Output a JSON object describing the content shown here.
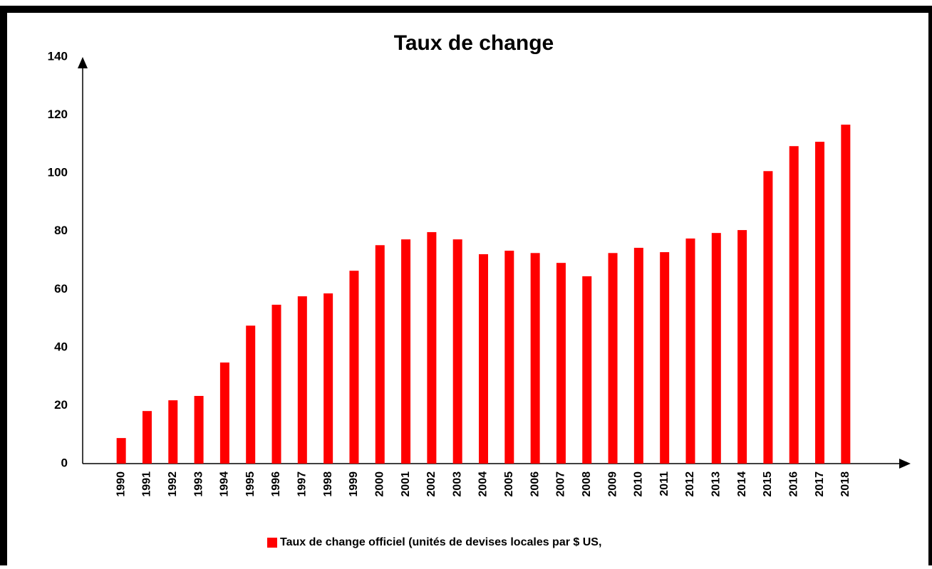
{
  "chart_data": {
    "type": "bar",
    "title": "Taux de change",
    "categories": [
      "1990",
      "1991",
      "1992",
      "1993",
      "1994",
      "1995",
      "1996",
      "1997",
      "1998",
      "1999",
      "2000",
      "2001",
      "2002",
      "2003",
      "2004",
      "2005",
      "2006",
      "2007",
      "2008",
      "2009",
      "2010",
      "2011",
      "2012",
      "2013",
      "2014",
      "2015",
      "2016",
      "2017",
      "2018"
    ],
    "series": [
      {
        "name": "Taux de change officiel (unités de devises locales par $ US,",
        "color": "#ff0000",
        "values": [
          8.8,
          18.1,
          21.8,
          23.3,
          34.8,
          47.5,
          54.7,
          57.6,
          58.6,
          66.4,
          75.2,
          77.2,
          79.7,
          77.2,
          72.1,
          73.3,
          72.5,
          69.1,
          64.5,
          72.5,
          74.3,
          72.8,
          77.5,
          79.4,
          80.4,
          100.7,
          109.3,
          110.8,
          116.7
        ]
      }
    ],
    "ylim": [
      0,
      140
    ],
    "yticks": [
      0,
      20,
      40,
      60,
      80,
      100,
      120,
      140
    ],
    "grid": false,
    "legend": "bottom"
  }
}
